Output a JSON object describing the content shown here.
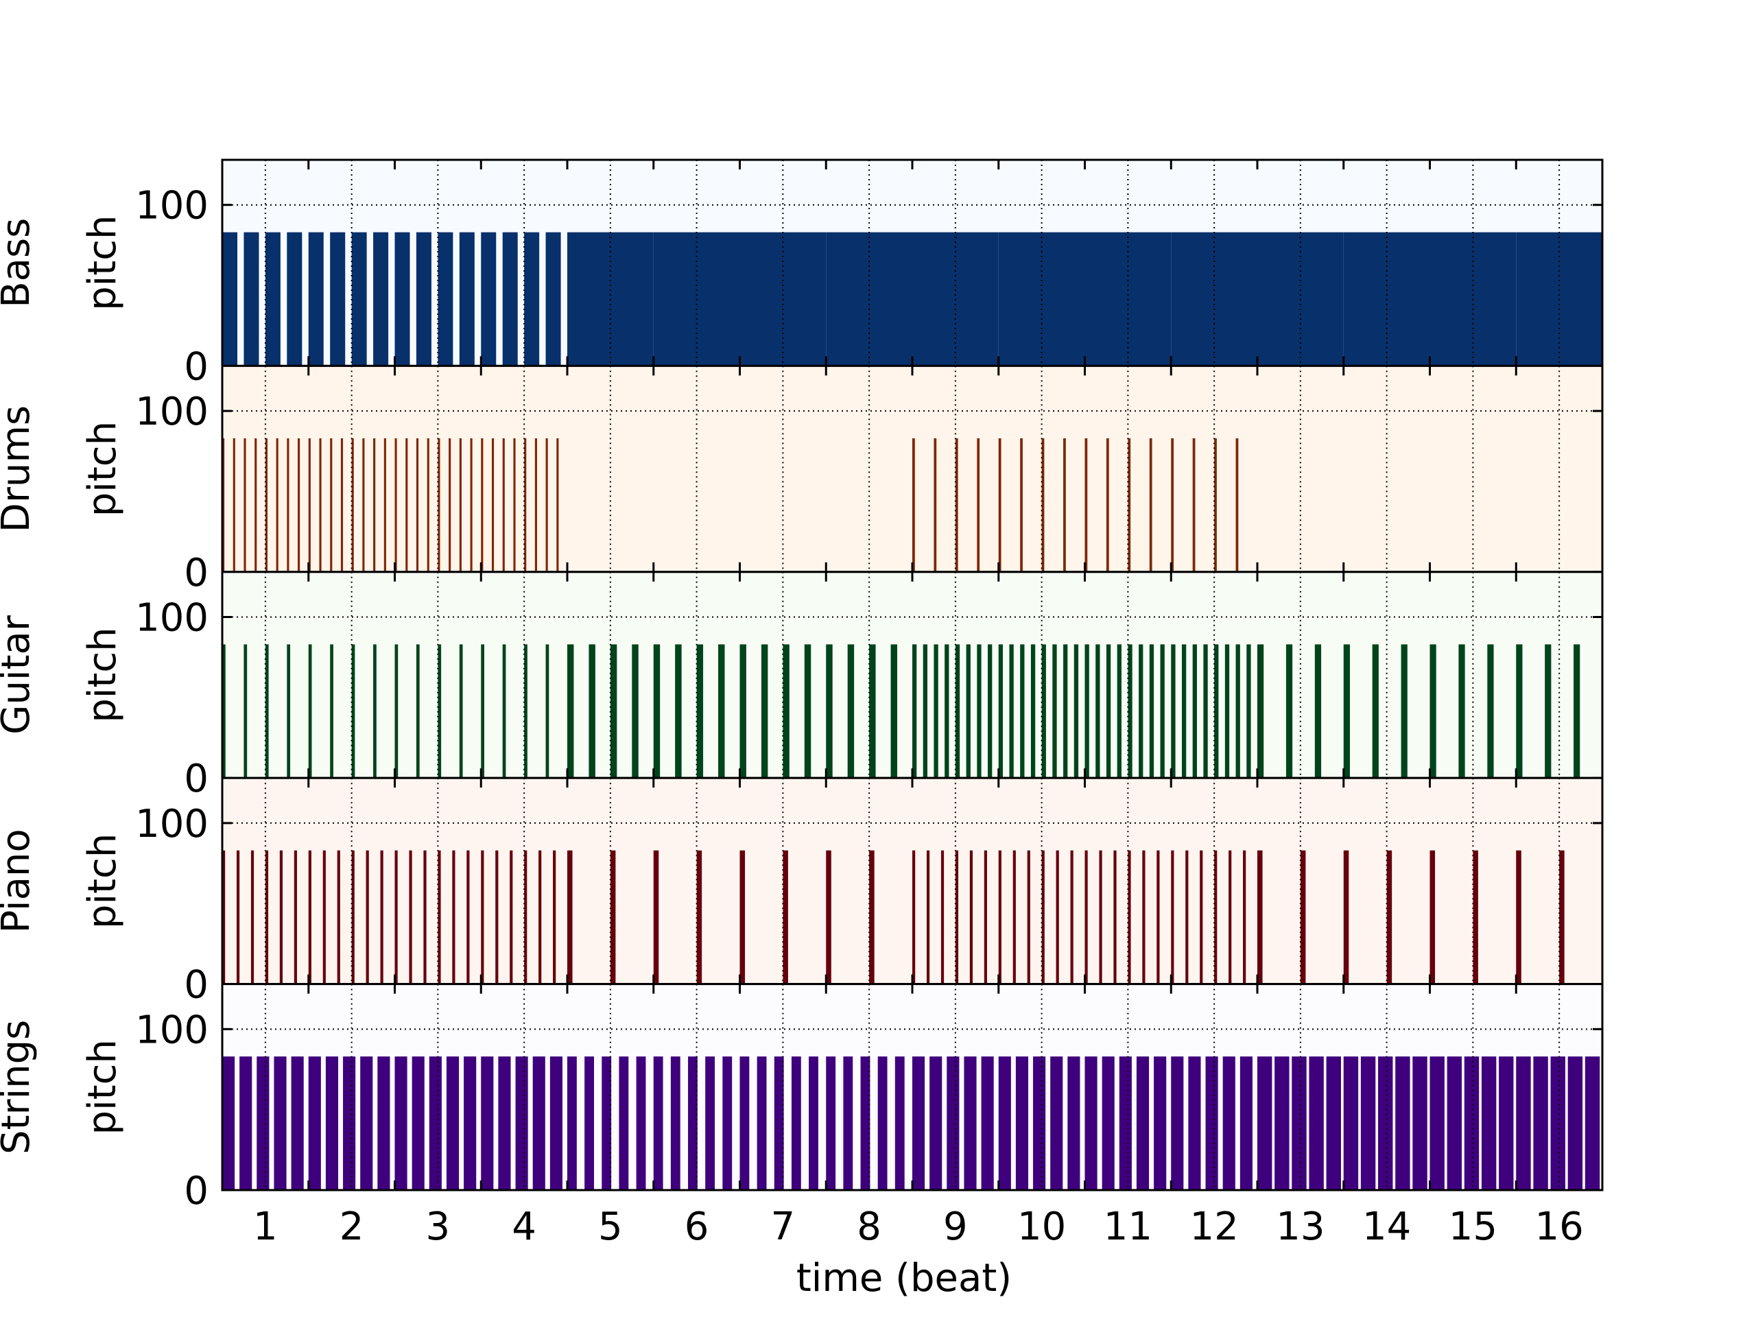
{
  "chart_data": {
    "type": "heatmap",
    "xlabel": "time (beat)",
    "x_ticks": [
      "1",
      "2",
      "3",
      "4",
      "5",
      "6",
      "7",
      "8",
      "9",
      "10",
      "11",
      "12",
      "13",
      "14",
      "15",
      "16"
    ],
    "xlim": [
      0.5,
      16.5
    ],
    "ylim": [
      0,
      128
    ],
    "y_ticks": [
      "0",
      "100"
    ],
    "grid": true,
    "tracks": [
      {
        "name": "Bass",
        "ylabel": "pitch",
        "color": "#08306b",
        "background": "#f7fbff",
        "pitch_top": 83,
        "sections": [
          {
            "from": 0.5,
            "to": 4.5,
            "notes_per_beat": 4,
            "fill": 0.7
          },
          {
            "from": 4.5,
            "to": 12.5,
            "notes_per_beat": 1,
            "fill": 1.0
          },
          {
            "from": 12.5,
            "to": 16.5,
            "notes_per_beat": 1,
            "fill": 1.0
          }
        ]
      },
      {
        "name": "Drums",
        "ylabel": "pitch",
        "color": "#7f2704",
        "background": "#fff5eb",
        "pitch_top": 83,
        "sections": [
          {
            "from": 0.5,
            "to": 4.5,
            "notes_per_beat": 8,
            "fill": 0.2
          },
          {
            "from": 4.5,
            "to": 8.5,
            "notes_per_beat": 0,
            "fill": 0
          },
          {
            "from": 8.5,
            "to": 12.5,
            "notes_per_beat": 4,
            "fill": 0.12
          },
          {
            "from": 12.5,
            "to": 16.5,
            "notes_per_beat": 0,
            "fill": 0
          }
        ]
      },
      {
        "name": "Guitar",
        "ylabel": "pitch",
        "color": "#00441b",
        "background": "#f7fcf5",
        "pitch_top": 83,
        "sections": [
          {
            "from": 0.5,
            "to": 4.5,
            "notes_per_beat": 4,
            "fill": 0.15
          },
          {
            "from": 4.5,
            "to": 8.5,
            "notes_per_beat": 4,
            "fill": 0.3
          },
          {
            "from": 8.5,
            "to": 12.5,
            "notes_per_beat": 8,
            "fill": 0.4
          },
          {
            "from": 12.5,
            "to": 16.5,
            "notes_per_beat": 3,
            "fill": 0.22
          }
        ]
      },
      {
        "name": "Piano",
        "ylabel": "pitch",
        "color": "#67000d",
        "background": "#fff5f0",
        "pitch_top": 83,
        "sections": [
          {
            "from": 0.5,
            "to": 4.5,
            "notes_per_beat": 6,
            "fill": 0.2
          },
          {
            "from": 4.5,
            "to": 8.5,
            "notes_per_beat": 2,
            "fill": 0.12
          },
          {
            "from": 8.5,
            "to": 12.5,
            "notes_per_beat": 6,
            "fill": 0.2
          },
          {
            "from": 12.5,
            "to": 16.5,
            "notes_per_beat": 2,
            "fill": 0.12
          }
        ]
      },
      {
        "name": "Strings",
        "ylabel": "pitch",
        "color": "#3f007d",
        "background": "#fcfbfd",
        "pitch_top": 83,
        "sections": [
          {
            "from": 0.5,
            "to": 4.5,
            "notes_per_beat": 5,
            "fill": 0.72
          },
          {
            "from": 4.5,
            "to": 8.5,
            "notes_per_beat": 5,
            "fill": 0.55
          },
          {
            "from": 8.5,
            "to": 12.5,
            "notes_per_beat": 5,
            "fill": 0.72
          },
          {
            "from": 12.5,
            "to": 16.5,
            "notes_per_beat": 5,
            "fill": 0.85
          }
        ]
      }
    ]
  }
}
